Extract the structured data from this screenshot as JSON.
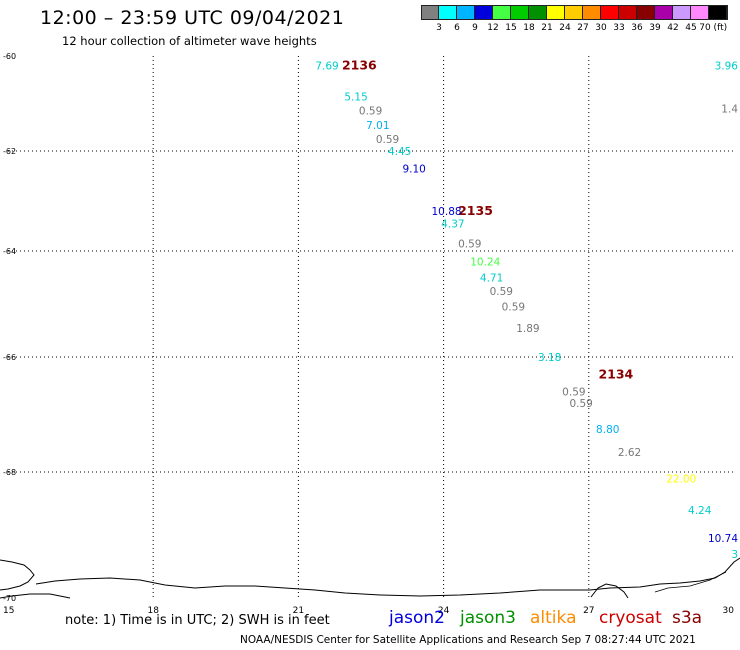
{
  "title": "12:00 – 23:59 UTC 09/04/2021",
  "subtitle": "12 hour collection of altimeter wave heights",
  "legend": {
    "colors": [
      "#808080",
      "#00ffff",
      "#00b4ff",
      "#0000dd",
      "#44ff44",
      "#00cc00",
      "#009000",
      "#ffff00",
      "#ffcc00",
      "#ff8c00",
      "#ff0000",
      "#cc0000",
      "#880000",
      "#aa00aa",
      "#cc99ff",
      "#ff88ff",
      "#000000"
    ],
    "labels": [
      "3",
      "6",
      "9",
      "12",
      "15",
      "18",
      "21",
      "24",
      "27",
      "30",
      "33",
      "36",
      "39",
      "42",
      "45",
      "70 (ft)"
    ]
  },
  "axes": {
    "x_ticks": [
      "15",
      "18",
      "21",
      "24",
      "27",
      "30"
    ],
    "y_ticks": [
      "-60",
      "-62",
      "-64",
      "-66",
      "-68",
      "-70"
    ]
  },
  "track_labels": [
    {
      "text": "2136",
      "color": "#880000",
      "lon": 21.9,
      "lat": -60.2
    },
    {
      "text": "2135",
      "color": "#880000",
      "lon": 24.3,
      "lat": -63.2
    },
    {
      "text": "2134",
      "color": "#880000",
      "lon": 27.2,
      "lat": -66.3
    }
  ],
  "observations": [
    {
      "text": "7.69",
      "color": "#00cccc",
      "lon": 21.35,
      "lat": -60.2
    },
    {
      "text": "3.96",
      "color": "#00cccc",
      "lon": 29.9,
      "lat": -60.2
    },
    {
      "text": "5.15",
      "color": "#00cccc",
      "lon": 21.95,
      "lat": -60.85
    },
    {
      "text": "0.59",
      "color": "#777777",
      "lon": 22.25,
      "lat": -61.15
    },
    {
      "text": "1.4",
      "color": "#777777",
      "lon": 30.1,
      "lat": -61.1
    },
    {
      "text": "7.01",
      "color": "#00b0f0",
      "lon": 22.4,
      "lat": -61.45
    },
    {
      "text": "0.59",
      "color": "#777777",
      "lon": 22.6,
      "lat": -61.75
    },
    {
      "text": "4.45",
      "color": "#00cccc",
      "lon": 22.85,
      "lat": -62.0
    },
    {
      "text": "9.10",
      "color": "#0000cc",
      "lon": 23.15,
      "lat": -62.35
    },
    {
      "text": "10.88",
      "color": "#0000cc",
      "lon": 23.75,
      "lat": -63.2
    },
    {
      "text": "4.37",
      "color": "#00cccc",
      "lon": 23.95,
      "lat": -63.45
    },
    {
      "text": "0.59",
      "color": "#777777",
      "lon": 24.3,
      "lat": -63.85
    },
    {
      "text": "10.24",
      "color": "#44ff44",
      "lon": 24.55,
      "lat": -64.2
    },
    {
      "text": "4.71",
      "color": "#00cccc",
      "lon": 24.75,
      "lat": -64.5
    },
    {
      "text": "0.59",
      "color": "#777777",
      "lon": 24.95,
      "lat": -64.75
    },
    {
      "text": "0.59",
      "color": "#777777",
      "lon": 25.2,
      "lat": -65.05
    },
    {
      "text": "1.89",
      "color": "#777777",
      "lon": 25.5,
      "lat": -65.45
    },
    {
      "text": "3.18",
      "color": "#00cccc",
      "lon": 25.95,
      "lat": -66.0
    },
    {
      "text": "0.59",
      "color": "#777777",
      "lon": 26.45,
      "lat": -66.6
    },
    {
      "text": "0.59",
      "color": "#777777",
      "lon": 26.6,
      "lat": -66.8
    },
    {
      "text": "8.80",
      "color": "#00b0f0",
      "lon": 27.15,
      "lat": -67.25
    },
    {
      "text": "2.62",
      "color": "#777777",
      "lon": 27.6,
      "lat": -67.65
    },
    {
      "text": "22.00",
      "color": "#ffff00",
      "lon": 28.6,
      "lat": -68.1
    },
    {
      "text": "4.24",
      "color": "#00cccc",
      "lon": 29.05,
      "lat": -68.6
    },
    {
      "text": "10.74",
      "color": "#0000cc",
      "lon": 29.6,
      "lat": -69.05
    },
    {
      "text": "3",
      "color": "#00cccc",
      "lon": 30.05,
      "lat": -69.3
    }
  ],
  "note": "note: 1) Time is in UTC; 2) SWH is in feet",
  "satellites": [
    {
      "name": "jason2",
      "color": "#0000dd"
    },
    {
      "name": "jason3",
      "color": "#009000"
    },
    {
      "name": "altika",
      "color": "#ff8c00"
    },
    {
      "name": "cryosat",
      "color": "#cc0000"
    },
    {
      "name": "s3a",
      "color": "#880000"
    }
  ],
  "credit": "NOAA/NESDIS Center for Satellite Applications and Research    Sep  7 08:27:44 UTC 2021"
}
